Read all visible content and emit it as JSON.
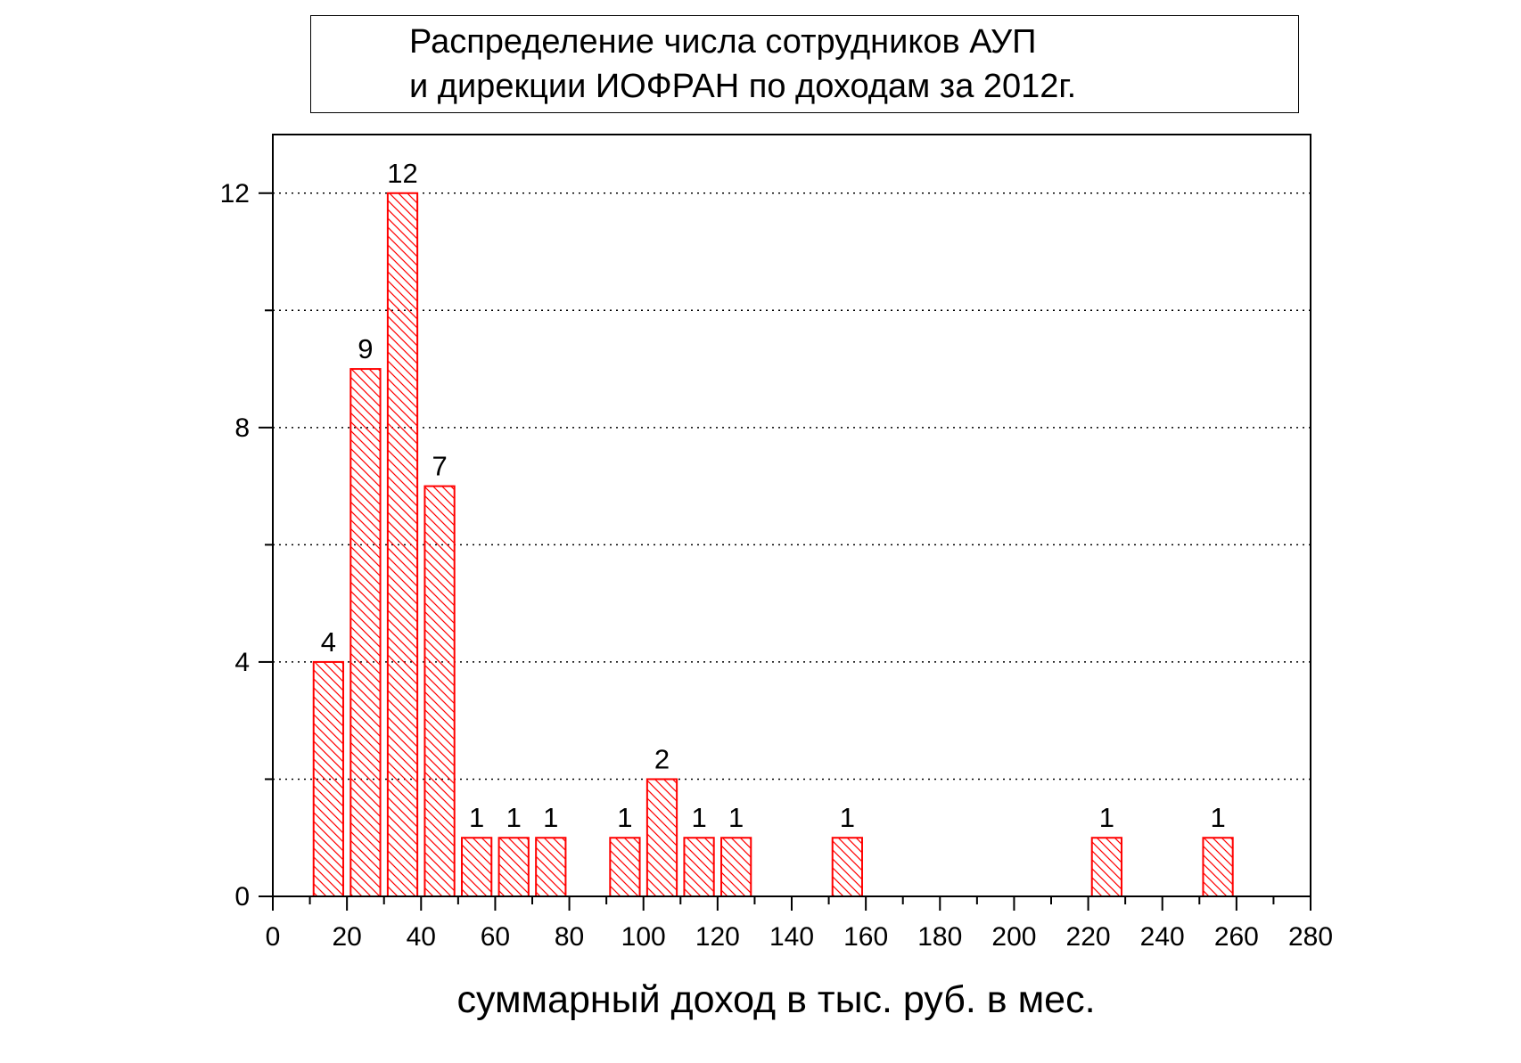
{
  "chart_data": {
    "type": "bar",
    "title_lines": [
      "Распределение числа сотрудников АУП",
      "и дирекции  ИОФРАН по доходам за 2012г."
    ],
    "xlabel": "суммарный доход в тыс. руб. в мес.",
    "ylabel": "",
    "xlim": [
      0,
      280
    ],
    "ylim": [
      0,
      13
    ],
    "x_ticks": [
      0,
      20,
      40,
      60,
      80,
      100,
      120,
      140,
      160,
      180,
      200,
      220,
      240,
      260,
      280
    ],
    "y_ticks": [
      0,
      4,
      8,
      12
    ],
    "grid_y": [
      2,
      4,
      6,
      8,
      10,
      12
    ],
    "grid": true,
    "bar_width": 8,
    "bars": [
      {
        "x": 15,
        "value": 4
      },
      {
        "x": 25,
        "value": 9
      },
      {
        "x": 35,
        "value": 12
      },
      {
        "x": 45,
        "value": 7
      },
      {
        "x": 55,
        "value": 1
      },
      {
        "x": 65,
        "value": 1
      },
      {
        "x": 75,
        "value": 1
      },
      {
        "x": 95,
        "value": 1
      },
      {
        "x": 105,
        "value": 2
      },
      {
        "x": 115,
        "value": 1
      },
      {
        "x": 125,
        "value": 1
      },
      {
        "x": 155,
        "value": 1
      },
      {
        "x": 225,
        "value": 1
      },
      {
        "x": 255,
        "value": 1
      }
    ],
    "colors": {
      "bar": "#ff0000",
      "axis": "#000000",
      "grid": "#000000"
    }
  }
}
